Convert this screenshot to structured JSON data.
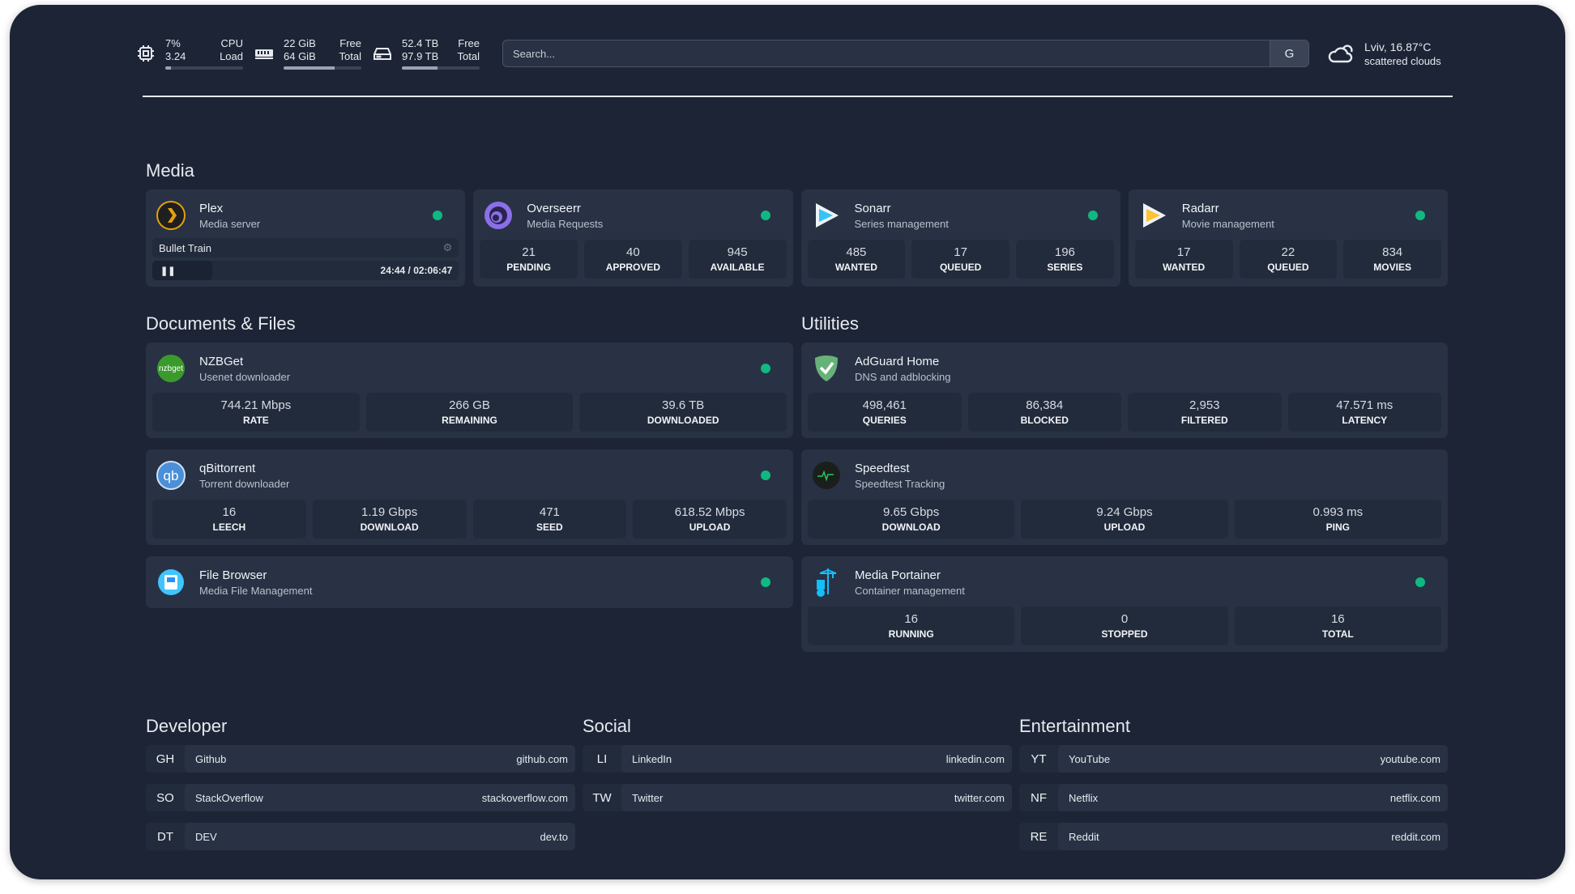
{
  "header": {
    "cpu": {
      "icon": "cpu-icon",
      "value1": "7%",
      "label1": "CPU",
      "value2": "3.24",
      "label2": "Load",
      "percent": 7
    },
    "memory": {
      "icon": "memory-icon",
      "value1": "22 GiB",
      "label1": "Free",
      "value2": "64 GiB",
      "label2": "Total",
      "percent": 66
    },
    "disk": {
      "icon": "disk-icon",
      "value1": "52.4 TB",
      "label1": "Free",
      "value2": "97.9 TB",
      "label2": "Total",
      "percent": 46
    },
    "search": {
      "placeholder": "Search...",
      "button": "G"
    },
    "weather": {
      "icon": "cloud-icon",
      "location_temp": "Lviv, 16.87°C",
      "condition": "scattered clouds"
    }
  },
  "colors": {
    "background": "#1d2435",
    "card": "#283244",
    "stat": "#222b3b",
    "status_online": "#10b981"
  },
  "sections": {
    "media": "Media",
    "documents": "Documents & Files",
    "utilities": "Utilities",
    "developer": "Developer",
    "social": "Social",
    "entertainment": "Entertainment"
  },
  "media": [
    {
      "name": "Plex",
      "sub": "Media server",
      "icon": "plex-icon",
      "status": "online",
      "now_playing": {
        "title": "Bullet Train",
        "time": "24:44 / 02:06:47",
        "progress": 0.195,
        "state": "paused"
      }
    },
    {
      "name": "Overseerr",
      "sub": "Media Requests",
      "icon": "overseerr-icon",
      "status": "online",
      "stats": [
        {
          "v": "21",
          "l": "PENDING"
        },
        {
          "v": "40",
          "l": "APPROVED"
        },
        {
          "v": "945",
          "l": "AVAILABLE"
        }
      ]
    },
    {
      "name": "Sonarr",
      "sub": "Series management",
      "icon": "sonarr-icon",
      "status": "online",
      "stats": [
        {
          "v": "485",
          "l": "WANTED"
        },
        {
          "v": "17",
          "l": "QUEUED"
        },
        {
          "v": "196",
          "l": "SERIES"
        }
      ]
    },
    {
      "name": "Radarr",
      "sub": "Movie management",
      "icon": "radarr-icon",
      "status": "online",
      "stats": [
        {
          "v": "17",
          "l": "WANTED"
        },
        {
          "v": "22",
          "l": "QUEUED"
        },
        {
          "v": "834",
          "l": "MOVIES"
        }
      ]
    }
  ],
  "documents": [
    {
      "name": "NZBGet",
      "sub": "Usenet downloader",
      "icon": "nzbget-icon",
      "status": "online",
      "stats": [
        {
          "v": "744.21 Mbps",
          "l": "RATE"
        },
        {
          "v": "266 GB",
          "l": "REMAINING"
        },
        {
          "v": "39.6 TB",
          "l": "DOWNLOADED"
        }
      ]
    },
    {
      "name": "qBittorrent",
      "sub": "Torrent downloader",
      "icon": "qbittorrent-icon",
      "status": "online",
      "stats": [
        {
          "v": "16",
          "l": "LEECH"
        },
        {
          "v": "1.19 Gbps",
          "l": "DOWNLOAD"
        },
        {
          "v": "471",
          "l": "SEED"
        },
        {
          "v": "618.52 Mbps",
          "l": "UPLOAD"
        }
      ]
    },
    {
      "name": "File Browser",
      "sub": "Media File Management",
      "icon": "filebrowser-icon",
      "status": "online"
    }
  ],
  "utilities": [
    {
      "name": "AdGuard Home",
      "sub": "DNS and adblocking",
      "icon": "adguard-icon",
      "stats": [
        {
          "v": "498,461",
          "l": "QUERIES"
        },
        {
          "v": "86,384",
          "l": "BLOCKED"
        },
        {
          "v": "2,953",
          "l": "FILTERED"
        },
        {
          "v": "47.571 ms",
          "l": "LATENCY"
        }
      ]
    },
    {
      "name": "Speedtest",
      "sub": "Speedtest Tracking",
      "icon": "speedtest-icon",
      "stats": [
        {
          "v": "9.65 Gbps",
          "l": "DOWNLOAD"
        },
        {
          "v": "9.24 Gbps",
          "l": "UPLOAD"
        },
        {
          "v": "0.993 ms",
          "l": "PING"
        }
      ]
    },
    {
      "name": "Media Portainer",
      "sub": "Container management",
      "icon": "portainer-icon",
      "status": "online",
      "stats": [
        {
          "v": "16",
          "l": "RUNNING"
        },
        {
          "v": "0",
          "l": "STOPPED"
        },
        {
          "v": "16",
          "l": "TOTAL"
        }
      ]
    }
  ],
  "bookmarks": {
    "developer": [
      {
        "abbr": "GH",
        "name": "Github",
        "url": "github.com"
      },
      {
        "abbr": "SO",
        "name": "StackOverflow",
        "url": "stackoverflow.com"
      },
      {
        "abbr": "DT",
        "name": "DEV",
        "url": "dev.to"
      }
    ],
    "social": [
      {
        "abbr": "LI",
        "name": "LinkedIn",
        "url": "linkedin.com"
      },
      {
        "abbr": "TW",
        "name": "Twitter",
        "url": "twitter.com"
      }
    ],
    "entertainment": [
      {
        "abbr": "YT",
        "name": "YouTube",
        "url": "youtube.com"
      },
      {
        "abbr": "NF",
        "name": "Netflix",
        "url": "netflix.com"
      },
      {
        "abbr": "RE",
        "name": "Reddit",
        "url": "reddit.com"
      }
    ]
  }
}
